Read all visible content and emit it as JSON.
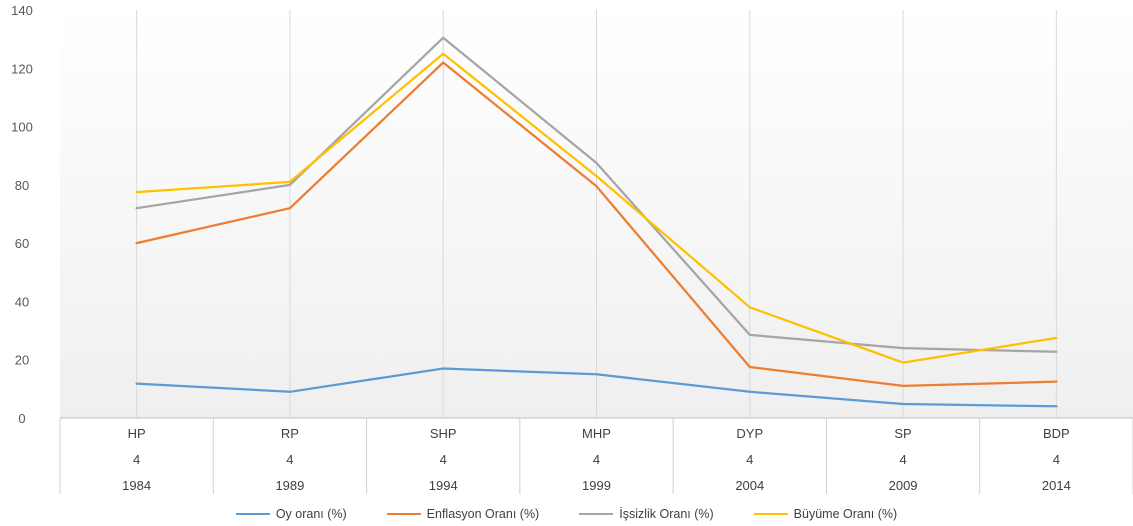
{
  "chart_data": {
    "type": "line",
    "categories": [
      {
        "party": "HP",
        "n": "4",
        "year": "1984"
      },
      {
        "party": "RP",
        "n": "4",
        "year": "1989"
      },
      {
        "party": "SHP",
        "n": "4",
        "year": "1994"
      },
      {
        "party": "MHP",
        "n": "4",
        "year": "1999"
      },
      {
        "party": "DYP",
        "n": "4",
        "year": "2004"
      },
      {
        "party": "SP",
        "n": "4",
        "year": "2009"
      },
      {
        "party": "BDP",
        "n": "4",
        "year": "2014"
      }
    ],
    "series": [
      {
        "name": "Oy oranı (%)",
        "color": "#5b9bd5",
        "values": [
          11.8,
          9,
          17,
          15,
          9,
          4.8,
          4
        ]
      },
      {
        "name": "Enflasyon Oranı (%)",
        "color": "#ed7d31",
        "values": [
          60,
          72,
          122,
          79.5,
          17.5,
          11,
          12.5
        ]
      },
      {
        "name": "İşsizlik Oranı (%)",
        "color": "#a5a5a5",
        "values": [
          72,
          80,
          130.5,
          87.5,
          28.5,
          24,
          22.7
        ]
      },
      {
        "name": "Büyüme Oranı (%)",
        "color": "#ffc000",
        "values": [
          77.5,
          81,
          125,
          83,
          38,
          19,
          27.5
        ]
      }
    ],
    "y_ticks": [
      0,
      20,
      40,
      60,
      80,
      100,
      120,
      140
    ],
    "ylim": [
      0,
      140
    ],
    "grid": "vertical category dividers",
    "legend_position": "bottom"
  }
}
